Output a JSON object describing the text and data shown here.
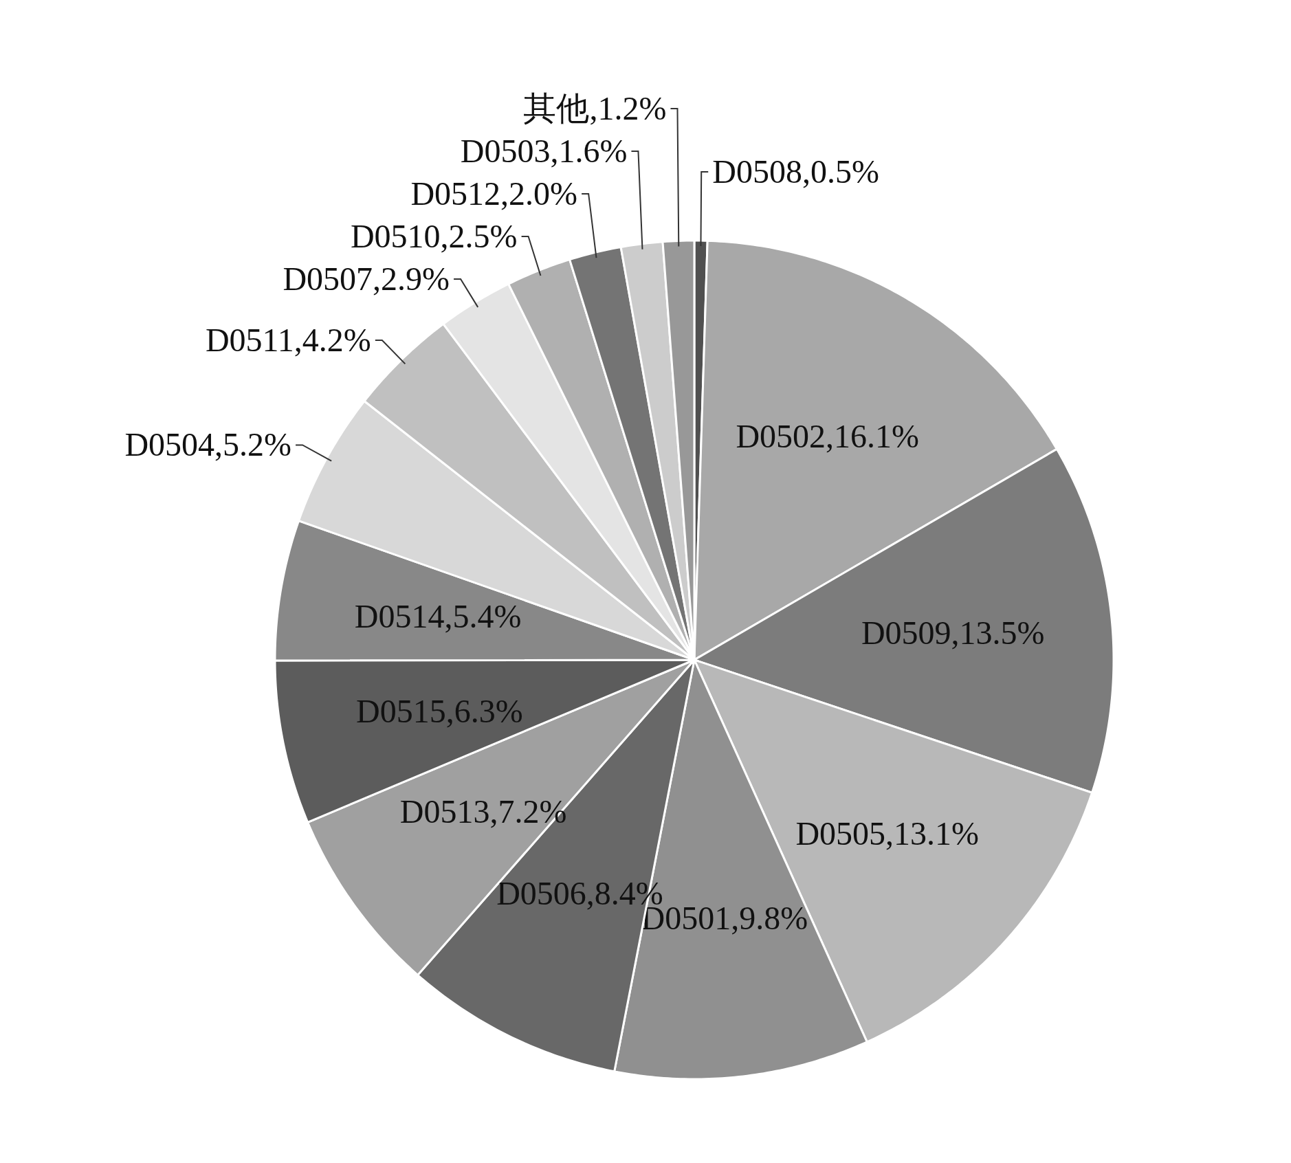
{
  "chart_data": {
    "type": "pie",
    "categories": [
      "D0508,0.5%",
      "D0502,16.1%",
      "D0509,13.5%",
      "D0505,13.1%",
      "D0501,9.8%",
      "D0506,8.4%",
      "D0513,7.2%",
      "D0515,6.3%",
      "D0514,5.4%",
      "D0504,5.2%",
      "D0511,4.2%",
      "D0507,2.9%",
      "D0510,2.5%",
      "D0512,2.0%",
      "D0503,1.6%",
      "其他,1.2%"
    ],
    "values": [
      0.5,
      16.1,
      13.5,
      13.1,
      9.8,
      8.4,
      7.2,
      6.3,
      5.4,
      5.2,
      4.2,
      2.9,
      2.5,
      2.0,
      1.6,
      1.2
    ],
    "colors": [
      "#505050",
      "#a8a8a8",
      "#7c7c7c",
      "#b8b8b8",
      "#909090",
      "#686868",
      "#a0a0a0",
      "#5c5c5c",
      "#888888",
      "#d8d8d8",
      "#c0c0c0",
      "#e4e4e4",
      "#b0b0b0",
      "#747474",
      "#cccccc",
      "#989898"
    ]
  }
}
